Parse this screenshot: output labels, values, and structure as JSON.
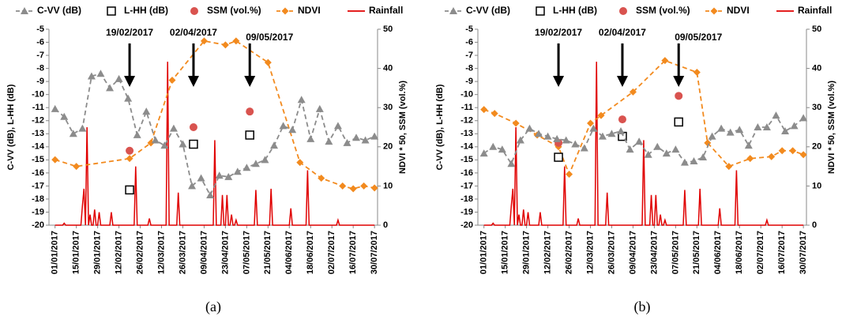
{
  "chart_data": [
    {
      "type": "line",
      "label": "(a)",
      "y_label": "C-VV (dB), L-HH (dB)",
      "y2_label": "NDVI * 50, SSM (vol.%)",
      "xlim": [
        -4,
        212
      ],
      "ylim": [
        -20,
        -5
      ],
      "yticks": [
        -20,
        -19,
        -18,
        -17,
        -16,
        -15,
        -14,
        -13,
        -12,
        -11,
        -10,
        -9,
        -8,
        -7,
        -6,
        -5
      ],
      "y2lim": [
        0,
        50
      ],
      "y2ticks": [
        0,
        10,
        20,
        30,
        40,
        50
      ],
      "xticks": [
        {
          "value": 0,
          "label": "01/01/2017"
        },
        {
          "value": 14,
          "label": "15/01/2017"
        },
        {
          "value": 28,
          "label": "29/01/2017"
        },
        {
          "value": 42,
          "label": "12/02/2017"
        },
        {
          "value": 56,
          "label": "26/02/2017"
        },
        {
          "value": 70,
          "label": "12/03/2017"
        },
        {
          "value": 84,
          "label": "26/03/2017"
        },
        {
          "value": 98,
          "label": "09/04/2017"
        },
        {
          "value": 112,
          "label": "23/04/2017"
        },
        {
          "value": 126,
          "label": "07/05/2017"
        },
        {
          "value": 140,
          "label": "21/05/2017"
        },
        {
          "value": 154,
          "label": "04/06/2017"
        },
        {
          "value": 168,
          "label": "18/06/2017"
        },
        {
          "value": 182,
          "label": "02/07/2017"
        },
        {
          "value": 196,
          "label": "16/07/2017"
        },
        {
          "value": 210,
          "label": "30/07/2017"
        }
      ],
      "annotations": [
        {
          "text": "19/02/2017",
          "x": 49
        },
        {
          "text": "02/04/2017",
          "x": 91
        },
        {
          "text": "09/05/2017",
          "x": 128
        }
      ],
      "series": [
        {
          "name": "C-VV (dB)",
          "color": "#8c8c8c",
          "marker": "triangle",
          "line": true,
          "dash": true,
          "x": [
            0,
            6,
            12,
            18,
            24,
            30,
            36,
            42,
            48,
            54,
            60,
            66,
            72,
            78,
            84,
            90,
            96,
            102,
            108,
            114,
            120,
            126,
            132,
            138,
            144,
            150,
            156,
            162,
            168,
            174,
            180,
            186,
            192,
            198,
            204,
            210
          ],
          "values": [
            -11.1,
            -11.7,
            -13.0,
            -12.6,
            -8.6,
            -8.4,
            -9.5,
            -8.8,
            -10.3,
            -13.1,
            -11.3,
            -13.5,
            -13.9,
            -12.6,
            -13.8,
            -17.0,
            -16.4,
            -17.7,
            -16.2,
            -16.3,
            -15.9,
            -15.6,
            -15.3,
            -15.0,
            -13.9,
            -12.4,
            -12.7,
            -10.4,
            -13.4,
            -11.1,
            -13.6,
            -12.4,
            -13.7,
            -13.3,
            -13.5,
            -13.2
          ]
        },
        {
          "name": "L-HH (dB)",
          "color": "#000000",
          "marker": "square",
          "line": false,
          "x": [
            49,
            91,
            128
          ],
          "values": [
            -17.3,
            -13.8,
            -13.1
          ]
        },
        {
          "name": "SSM (vol.%)",
          "color": "#d9534f",
          "marker": "circle",
          "line": false,
          "axis": "y2",
          "x": [
            49,
            91,
            128
          ],
          "values": [
            19,
            25,
            29
          ]
        },
        {
          "name": "NDVI",
          "color": "#f28a1e",
          "marker": "diamond",
          "line": true,
          "dash": true,
          "axis": "y2",
          "x": [
            0,
            14,
            49,
            63,
            77,
            98,
            112,
            119,
            140,
            161,
            175,
            189,
            196,
            203,
            210
          ],
          "values": [
            16.7,
            15,
            17,
            21,
            37,
            47,
            46,
            47,
            41.5,
            16,
            12,
            10,
            9.3,
            10,
            9.5
          ]
        },
        {
          "name": "Rainfall",
          "color": "#e00000",
          "marker": "none",
          "line": true,
          "dash": false,
          "axis": "y2",
          "x": [
            0,
            5,
            6,
            7,
            17,
            18,
            19,
            20,
            21,
            22,
            23,
            24,
            25,
            26,
            27,
            28,
            29,
            30,
            36,
            37,
            38,
            52,
            53,
            54,
            61,
            62,
            63,
            73,
            74,
            75,
            80,
            81,
            82,
            104,
            105,
            106,
            109,
            110,
            111,
            112,
            113,
            114,
            115,
            116,
            117,
            118,
            119,
            120,
            131,
            132,
            133,
            141,
            142,
            143,
            154,
            155,
            156,
            165,
            166,
            167,
            185,
            186,
            187,
            210
          ],
          "values": [
            0,
            0,
            0.5,
            0,
            0,
            5,
            9.3,
            0,
            25,
            0,
            2.7,
            0,
            0,
            4,
            0,
            0,
            3.3,
            0,
            0,
            3.3,
            0,
            0,
            15,
            0,
            0,
            1.7,
            0,
            0,
            41.7,
            0,
            0,
            8.3,
            0,
            0,
            21.7,
            0,
            0,
            7.7,
            0,
            0,
            7.7,
            0,
            0,
            2.7,
            0,
            0,
            1.3,
            0,
            0,
            9,
            0,
            0,
            9.3,
            0,
            0,
            4.3,
            0,
            0,
            14,
            0,
            0,
            1.3,
            0,
            0
          ]
        }
      ]
    },
    {
      "type": "line",
      "label": "(b)",
      "y_label": "C-VV (dB), L-HH (dB)",
      "y2_label": "NDVI * 50, SSM (vol.%)",
      "xlim": [
        -4,
        212
      ],
      "ylim": [
        -20,
        -5
      ],
      "yticks": [
        -20,
        -19,
        -18,
        -17,
        -16,
        -15,
        -14,
        -13,
        -12,
        -11,
        -10,
        -9,
        -8,
        -7,
        -6,
        -5
      ],
      "y2lim": [
        0,
        50
      ],
      "y2ticks": [
        0,
        10,
        20,
        30,
        40,
        50
      ],
      "xticks": [
        {
          "value": 0,
          "label": "01/01/2017"
        },
        {
          "value": 14,
          "label": "15/01/2017"
        },
        {
          "value": 28,
          "label": "29/01/2017"
        },
        {
          "value": 42,
          "label": "12/02/2017"
        },
        {
          "value": 56,
          "label": "26/02/2017"
        },
        {
          "value": 70,
          "label": "12/03/2017"
        },
        {
          "value": 84,
          "label": "26/03/2017"
        },
        {
          "value": 98,
          "label": "09/04/2017"
        },
        {
          "value": 112,
          "label": "23/04/2017"
        },
        {
          "value": 126,
          "label": "07/05/2017"
        },
        {
          "value": 140,
          "label": "21/05/2017"
        },
        {
          "value": 154,
          "label": "04/06/2017"
        },
        {
          "value": 168,
          "label": "18/06/2017"
        },
        {
          "value": 182,
          "label": "02/07/2017"
        },
        {
          "value": 196,
          "label": "16/07/2017"
        },
        {
          "value": 210,
          "label": "30/07/2017"
        }
      ],
      "annotations": [
        {
          "text": "19/02/2017",
          "x": 49
        },
        {
          "text": "02/04/2017",
          "x": 91
        },
        {
          "text": "09/05/2017",
          "x": 128
        }
      ],
      "series": [
        {
          "name": "C-VV (dB)",
          "color": "#8c8c8c",
          "marker": "triangle",
          "line": true,
          "dash": true,
          "x": [
            0,
            6,
            12,
            18,
            24,
            30,
            36,
            42,
            48,
            54,
            60,
            66,
            72,
            78,
            84,
            90,
            96,
            102,
            108,
            114,
            120,
            126,
            132,
            138,
            144,
            150,
            156,
            162,
            168,
            174,
            180,
            186,
            192,
            198,
            204,
            210
          ],
          "values": [
            -14.5,
            -14.0,
            -14.2,
            -15.3,
            -13.5,
            -12.6,
            -13.0,
            -13.2,
            -13.4,
            -13.5,
            -13.8,
            -14.1,
            -12.6,
            -13.2,
            -13.0,
            -12.8,
            -14.2,
            -13.6,
            -14.6,
            -14.0,
            -14.5,
            -14.2,
            -15.2,
            -15.1,
            -14.8,
            -13.2,
            -12.6,
            -12.9,
            -12.7,
            -13.9,
            -12.5,
            -12.5,
            -11.6,
            -12.8,
            -12.4,
            -11.8
          ]
        },
        {
          "name": "L-HH (dB)",
          "color": "#000000",
          "marker": "square",
          "line": false,
          "x": [
            49,
            91,
            128
          ],
          "values": [
            -14.8,
            -13.2,
            -12.1
          ]
        },
        {
          "name": "SSM (vol.%)",
          "color": "#d9534f",
          "marker": "circle",
          "line": false,
          "axis": "y2",
          "x": [
            49,
            91,
            128
          ],
          "values": [
            21,
            27,
            33
          ]
        },
        {
          "name": "NDVI",
          "color": "#f28a1e",
          "marker": "diamond",
          "line": true,
          "dash": true,
          "axis": "y2",
          "x": [
            0,
            7,
            21,
            35,
            49,
            56,
            70,
            77,
            98,
            119,
            140,
            147,
            161,
            175,
            189,
            196,
            203,
            210
          ],
          "values": [
            29.5,
            28.5,
            26,
            23,
            20,
            13,
            26,
            28,
            34,
            42,
            39,
            21,
            15,
            17,
            17.5,
            19,
            19,
            18
          ]
        },
        {
          "name": "Rainfall",
          "color": "#e00000",
          "marker": "none",
          "line": true,
          "dash": false,
          "axis": "y2",
          "x": [
            0,
            5,
            6,
            7,
            17,
            18,
            19,
            20,
            21,
            22,
            23,
            24,
            25,
            26,
            27,
            28,
            29,
            30,
            36,
            37,
            38,
            52,
            53,
            54,
            61,
            62,
            63,
            73,
            74,
            75,
            80,
            81,
            82,
            104,
            105,
            106,
            109,
            110,
            111,
            112,
            113,
            114,
            115,
            116,
            117,
            118,
            119,
            120,
            131,
            132,
            133,
            141,
            142,
            143,
            154,
            155,
            156,
            165,
            166,
            167,
            185,
            186,
            187,
            210
          ],
          "values": [
            0,
            0,
            0.5,
            0,
            0,
            5,
            9.3,
            0,
            25,
            0,
            2.7,
            0,
            0,
            4,
            0,
            0,
            3.3,
            0,
            0,
            3.3,
            0,
            0,
            15,
            0,
            0,
            1.7,
            0,
            0,
            41.7,
            0,
            0,
            8.3,
            0,
            0,
            21.7,
            0,
            0,
            7.7,
            0,
            0,
            7.7,
            0,
            0,
            2.7,
            0,
            0,
            1.3,
            0,
            0,
            9,
            0,
            0,
            9.3,
            0,
            0,
            4.3,
            0,
            0,
            14,
            0,
            0,
            1.3,
            0,
            0
          ]
        }
      ]
    }
  ]
}
